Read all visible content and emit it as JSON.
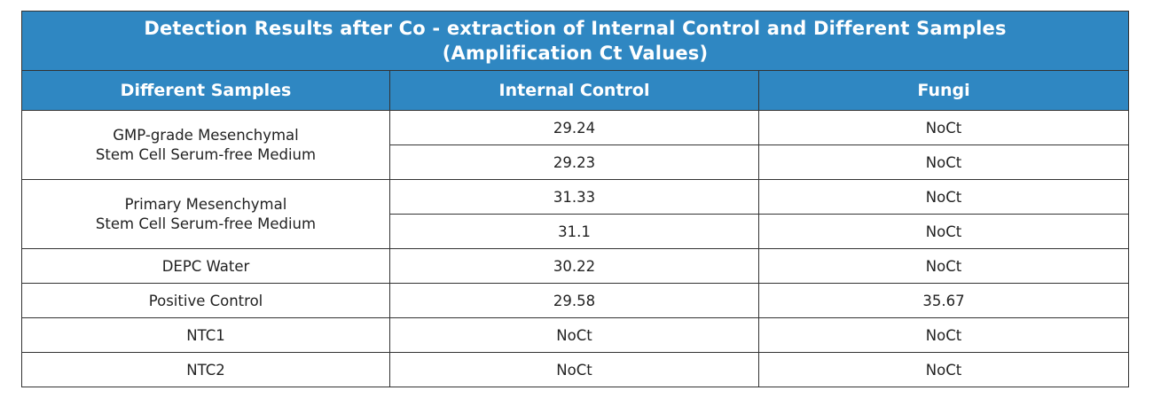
{
  "table": {
    "title_line1": "Detection Results after Co - extraction of Internal Control and Different Samples",
    "title_line2": "(Amplification Ct Values)",
    "headers": [
      "Different Samples",
      "Internal Control",
      "Fungi"
    ],
    "groups": [
      {
        "sample_line1": "GMP-grade Mesenchymal",
        "sample_line2": "Stem Cell Serum-free Medium",
        "rows": [
          {
            "internal_control": "29.24",
            "fungi": "NoCt"
          },
          {
            "internal_control": "29.23",
            "fungi": "NoCt"
          }
        ]
      },
      {
        "sample_line1": "Primary Mesenchymal",
        "sample_line2": "Stem Cell Serum-free Medium",
        "rows": [
          {
            "internal_control": "31.33",
            "fungi": "NoCt"
          },
          {
            "internal_control": "31.1",
            "fungi": "NoCt"
          }
        ]
      },
      {
        "sample_line1": "DEPC Water",
        "sample_line2": "",
        "rows": [
          {
            "internal_control": "30.22",
            "fungi": "NoCt"
          }
        ]
      },
      {
        "sample_line1": "Positive Control",
        "sample_line2": "",
        "rows": [
          {
            "internal_control": "29.58",
            "fungi": "35.67"
          }
        ]
      },
      {
        "sample_line1": "NTC1",
        "sample_line2": "",
        "rows": [
          {
            "internal_control": "NoCt",
            "fungi": "NoCt"
          }
        ]
      },
      {
        "sample_line1": "NTC2",
        "sample_line2": "",
        "rows": [
          {
            "internal_control": "NoCt",
            "fungi": "NoCt"
          }
        ]
      }
    ]
  }
}
